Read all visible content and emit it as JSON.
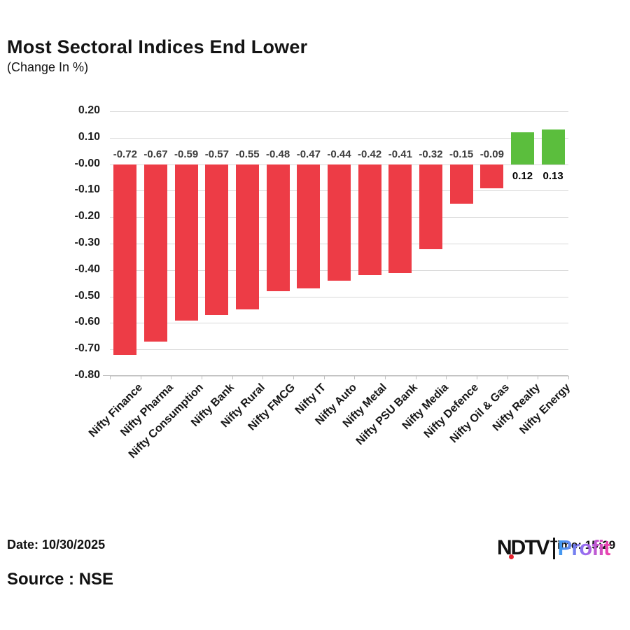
{
  "header": {
    "title": "Most Sectoral Indices End Lower",
    "subtitle": "(Change In %)"
  },
  "chart_data": {
    "type": "bar",
    "title": "Most Sectoral Indices End Lower",
    "subtitle": "(Change In %)",
    "categories": [
      "Nifty Finance",
      "Nifty Pharma",
      "Nifty Consumption",
      "Nifty Bank",
      "Nifty Rural",
      "Nifty FMCG",
      "Nifty IT",
      "Nifty Auto",
      "Nifty Metal",
      "Nifty PSU Bank",
      "Nifty Media",
      "Nifty Defence",
      "Nifty Oil & Gas",
      "Nifty Realty",
      "Nifty Energy"
    ],
    "values": [
      -0.72,
      -0.67,
      -0.59,
      -0.57,
      -0.55,
      -0.48,
      -0.47,
      -0.44,
      -0.42,
      -0.41,
      -0.32,
      -0.15,
      -0.09,
      0.12,
      0.13
    ],
    "value_labels": [
      "-0.72",
      "-0.67",
      "-0.59",
      "-0.57",
      "-0.55",
      "-0.48",
      "-0.47",
      "-0.44",
      "-0.42",
      "-0.41",
      "-0.32",
      "-0.15",
      "-0.09",
      "0.12",
      "0.13"
    ],
    "xlabel": "",
    "ylabel": "",
    "ylim": [
      -0.8,
      0.2
    ],
    "yticks": [
      {
        "label": "0.20",
        "value": 0.2
      },
      {
        "label": "0.10",
        "value": 0.1
      },
      {
        "label": "-0.00",
        "value": 0.0
      },
      {
        "label": "-0.10",
        "value": -0.1
      },
      {
        "label": "-0.20",
        "value": -0.2
      },
      {
        "label": "-0.30",
        "value": -0.3
      },
      {
        "label": "-0.40",
        "value": -0.4
      },
      {
        "label": "-0.50",
        "value": -0.5
      },
      {
        "label": "-0.60",
        "value": -0.6
      },
      {
        "label": "-0.70",
        "value": -0.7
      },
      {
        "label": "-0.80",
        "value": -0.8
      }
    ],
    "grid": "horizontal",
    "legend": "none",
    "colors": {
      "negative_bar": "#ED3C46",
      "positive_bar": "#5BBE3D",
      "gridline": "#D9D9D9",
      "axis": "#BFBFBF"
    }
  },
  "footer": {
    "date_label": "Date: 10/30/2025",
    "time_label": "Time: 15:29",
    "source_label": "Source : NSE",
    "logo": {
      "ndtv_text": "NDTV",
      "profit_text": "Profit",
      "dot_color": "#E8232E",
      "profit_gradient": [
        "#3B9DF0",
        "#9B6CF0",
        "#F43FA6"
      ]
    }
  }
}
